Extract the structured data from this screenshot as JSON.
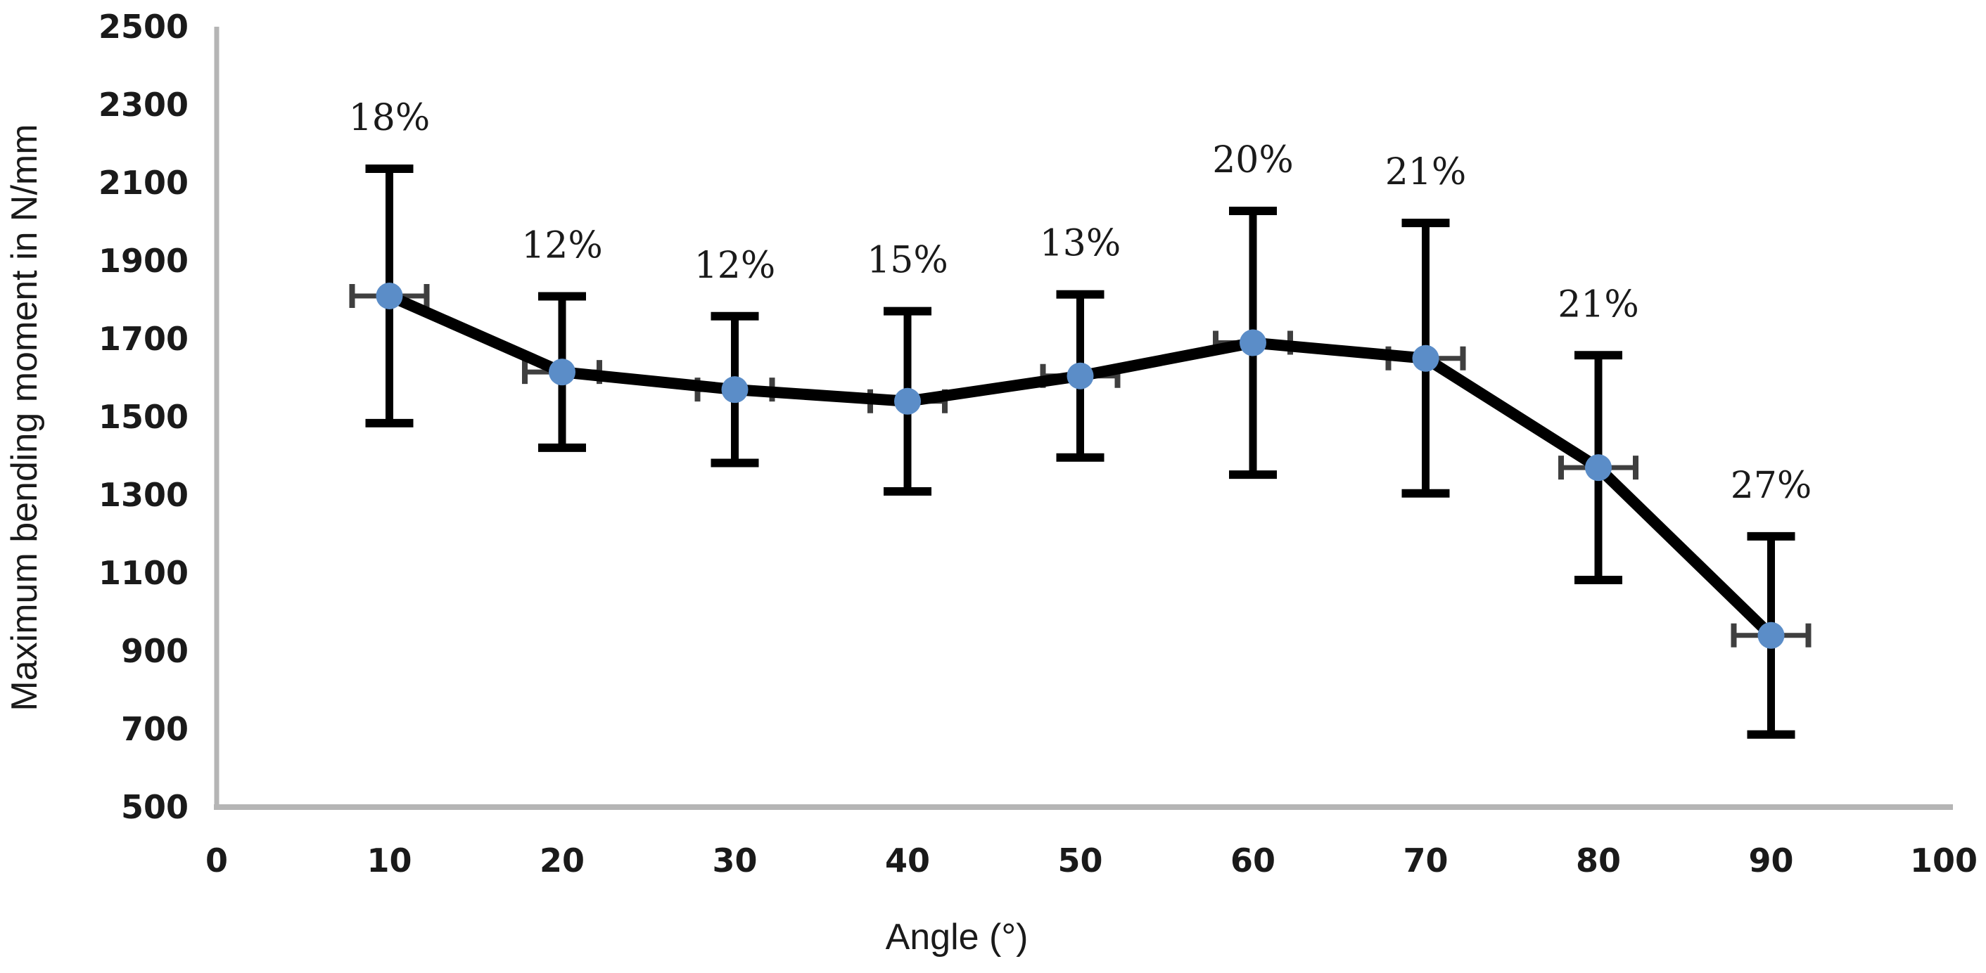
{
  "colors": {
    "background": "#ffffff",
    "axis_line": "#b5b5b5",
    "series_line": "#000000",
    "error_bar": "#000000",
    "whisker": "#3f3f3f",
    "marker_fill": "#5b8dc8",
    "text": "#1a1a1a"
  },
  "chart_data": {
    "type": "line",
    "title": "",
    "xlabel": "Angle (°)",
    "ylabel": "Maximum bending moment in N/mm",
    "x": [
      10,
      20,
      30,
      40,
      50,
      60,
      70,
      80,
      90
    ],
    "values": [
      1810,
      1615,
      1570,
      1540,
      1605,
      1690,
      1650,
      1370,
      940
    ],
    "error_pct": [
      18,
      12,
      12,
      15,
      13,
      20,
      21,
      21,
      27
    ],
    "error_low": [
      1484,
      1421,
      1382,
      1309,
      1396,
      1352,
      1304,
      1082,
      686
    ],
    "error_high": [
      2136,
      1809,
      1758,
      1771,
      1814,
      2028,
      1997,
      1658,
      1194
    ],
    "point_labels": [
      "18%",
      "12%",
      "12%",
      "15%",
      "13%",
      "20%",
      "21%",
      "21%",
      "27%"
    ],
    "xlim": [
      0,
      100
    ],
    "ylim": [
      500,
      2500
    ],
    "x_ticks": [
      0,
      10,
      20,
      30,
      40,
      50,
      60,
      70,
      80,
      90,
      100
    ],
    "y_ticks": [
      500,
      700,
      900,
      1100,
      1300,
      1500,
      1700,
      1900,
      2100,
      2300,
      2500
    ],
    "grid": false,
    "legend": "none",
    "marker": "circle",
    "error_bars": "vertical-and-horizontal-caps"
  }
}
